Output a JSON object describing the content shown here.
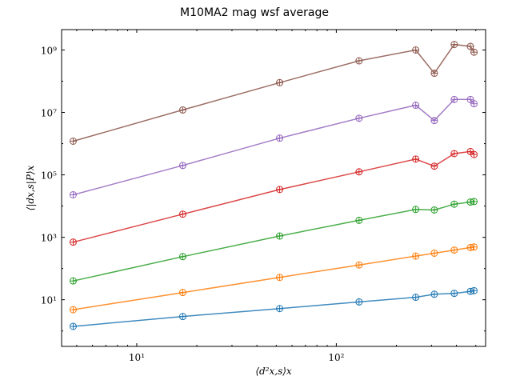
{
  "chart_data": {
    "type": "line",
    "title": "M10MA2 mag wsf average",
    "xlabel": "⟨d²x,s⟩x",
    "ylabel": "⟨|dx,s|P⟩x",
    "xscale": "log",
    "yscale": "log",
    "xlim": [
      4.2,
      560
    ],
    "ylim": [
      0.32,
      4500000000.0
    ],
    "x_ticks": [
      {
        "value": 10,
        "label": "10¹"
      },
      {
        "value": 100,
        "label": "10²"
      }
    ],
    "y_ticks": [
      {
        "value": 10,
        "label": "10¹"
      },
      {
        "value": 1000,
        "label": "10³"
      },
      {
        "value": 100000,
        "label": "10⁵"
      },
      {
        "value": 10000000,
        "label": "10⁷"
      },
      {
        "value": 1000000000,
        "label": "10⁹"
      }
    ],
    "grid": false,
    "marker": "open-circle-plus",
    "series": [
      {
        "color": "#1f77b4",
        "x": [
          4.8,
          17,
          52,
          130,
          250,
          310,
          390,
          470,
          490
        ],
        "y": [
          1.4,
          2.9,
          5.2,
          8.5,
          12.0,
          15.0,
          16.0,
          18.5,
          19.5
        ]
      },
      {
        "color": "#ff7f0e",
        "x": [
          4.8,
          17,
          52,
          130,
          250,
          310,
          390,
          470,
          490
        ],
        "y": [
          4.8,
          17,
          52,
          130,
          250,
          310,
          390,
          470,
          490
        ]
      },
      {
        "color": "#2ca02c",
        "x": [
          4.8,
          17,
          52,
          130,
          250,
          310,
          390,
          470,
          490
        ],
        "y": [
          40,
          240,
          1100,
          3500,
          7800,
          7500,
          11500,
          13500,
          14000
        ]
      },
      {
        "color": "#d62728",
        "x": [
          4.8,
          17,
          52,
          130,
          250,
          310,
          390,
          470,
          490
        ],
        "y": [
          700,
          5500,
          34000,
          125000,
          320000,
          190000,
          480000,
          560000,
          450000
        ]
      },
      {
        "color": "#9467bd",
        "x": [
          4.8,
          17,
          52,
          130,
          250,
          310,
          390,
          470,
          490
        ],
        "y": [
          23000,
          200000,
          1500000,
          6500000,
          17000000,
          5500000,
          26000000,
          26000000,
          19000000
        ]
      },
      {
        "color": "#8c564b",
        "x": [
          4.8,
          17,
          52,
          130,
          250,
          310,
          390,
          470,
          490
        ],
        "y": [
          1200000,
          12000000,
          90000000,
          450000000,
          1000000000,
          180000000,
          1500000000,
          1300000000,
          850000000
        ]
      }
    ]
  }
}
